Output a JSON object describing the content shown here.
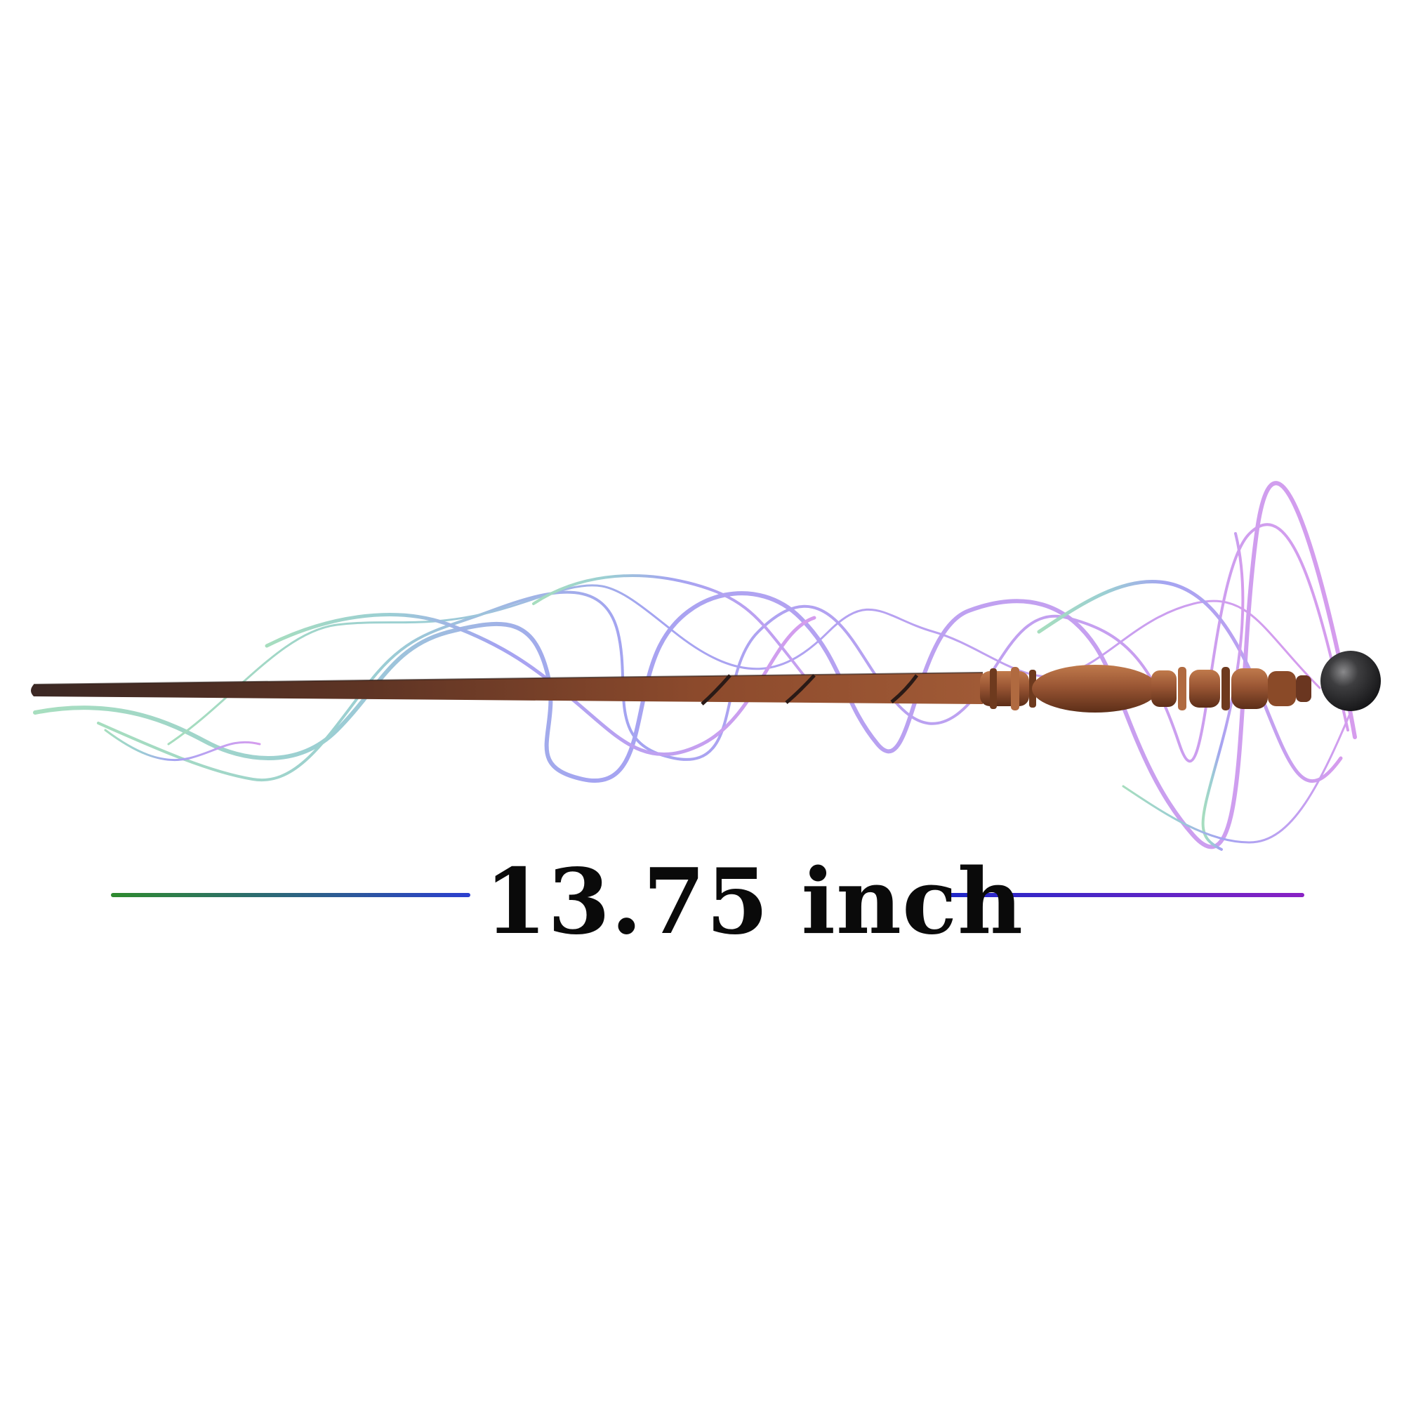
{
  "measurement": {
    "label": "13.75 inch"
  },
  "colors": {
    "background": "#ffffff",
    "text": "#0a0a0a",
    "line_left_start": "#2e8b2e",
    "line_left_end": "#2c3fd0",
    "line_right_start": "#1e28c8",
    "line_right_end": "#8a22c4",
    "smoke_green": "#5fc38a",
    "smoke_teal": "#4aa8b0",
    "smoke_blue": "#5a5ae6",
    "smoke_violet": "#8a55e6",
    "smoke_purple": "#b54de0",
    "wand_shaft_dark": "#4a2e26",
    "wand_wood": "#9a5634",
    "wand_tip": "#2e2e30"
  },
  "icons": {
    "wand": "wand-icon",
    "smoke": "smoke-icon"
  }
}
